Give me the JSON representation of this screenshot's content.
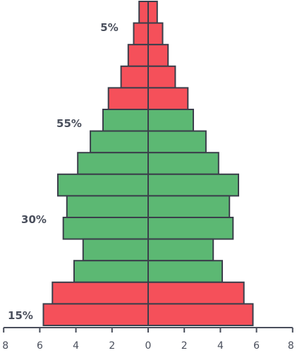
{
  "chart_data": {
    "type": "bar",
    "orientation": "horizontal",
    "layout": "population-pyramid",
    "xlim": [
      -8,
      8
    ],
    "x_ticks": [
      -8,
      -6,
      -4,
      -2,
      0,
      2,
      4,
      6,
      8
    ],
    "x_tick_labels": [
      "8",
      "6",
      "4",
      "2",
      "0",
      "2",
      "4",
      "6",
      "8"
    ],
    "rows_top_to_bottom": [
      {
        "left": 0.5,
        "right": 0.5,
        "group": "old"
      },
      {
        "left": 0.8,
        "right": 0.8,
        "group": "old"
      },
      {
        "left": 1.1,
        "right": 1.1,
        "group": "old"
      },
      {
        "left": 1.5,
        "right": 1.5,
        "group": "old"
      },
      {
        "left": 2.2,
        "right": 2.2,
        "group": "old"
      },
      {
        "left": 2.5,
        "right": 2.5,
        "group": "working"
      },
      {
        "left": 3.2,
        "right": 3.2,
        "group": "working"
      },
      {
        "left": 3.9,
        "right": 3.9,
        "group": "working"
      },
      {
        "left": 5.0,
        "right": 5.0,
        "group": "working"
      },
      {
        "left": 4.5,
        "right": 4.5,
        "group": "working"
      },
      {
        "left": 4.7,
        "right": 4.7,
        "group": "working"
      },
      {
        "left": 3.6,
        "right": 3.6,
        "group": "working"
      },
      {
        "left": 4.1,
        "right": 4.1,
        "group": "working"
      },
      {
        "left": 5.3,
        "right": 5.3,
        "group": "young"
      },
      {
        "left": 5.8,
        "right": 5.8,
        "group": "young"
      }
    ],
    "group_labels": [
      {
        "group": "old",
        "text": "5%"
      },
      {
        "group": "working_upper",
        "text": "55%"
      },
      {
        "group": "working_lower",
        "text": "30%"
      },
      {
        "group": "young",
        "text": "15%"
      }
    ],
    "colors": {
      "old": "#f5505a",
      "working": "#5cb873",
      "young": "#f5505a",
      "stroke": "#3b3f4b",
      "axis": "#4a4f5c"
    },
    "grid": false,
    "legend": "none"
  }
}
